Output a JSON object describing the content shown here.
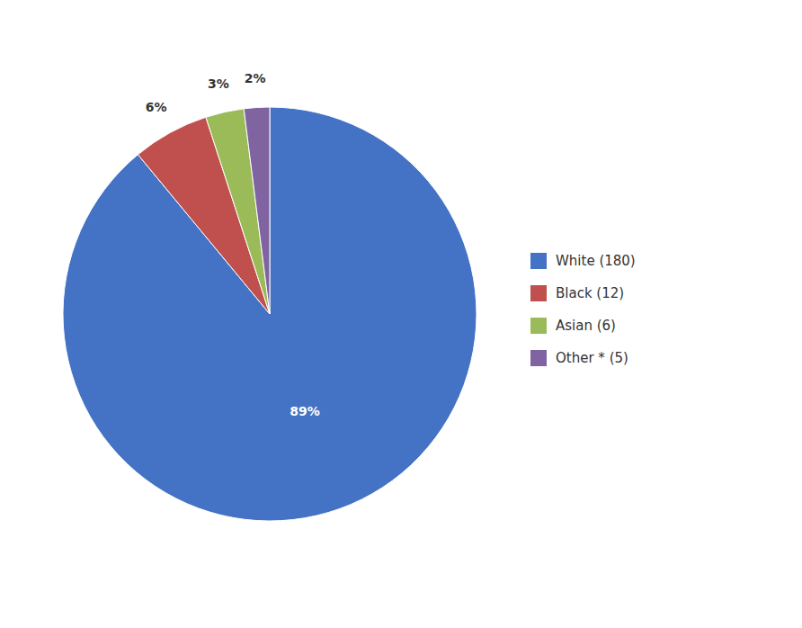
{
  "chart_data": {
    "type": "pie",
    "categories": [
      "White (180)",
      "Black (12)",
      "Asian (6)",
      "Other * (5)"
    ],
    "values": [
      89,
      6,
      3,
      2
    ],
    "value_labels": [
      "89%",
      "6%",
      "3%",
      "2%"
    ],
    "colors": [
      "#4472C4",
      "#C0504D",
      "#9BBB59",
      "#8064A2"
    ],
    "data_labels": true,
    "legend": "right"
  }
}
